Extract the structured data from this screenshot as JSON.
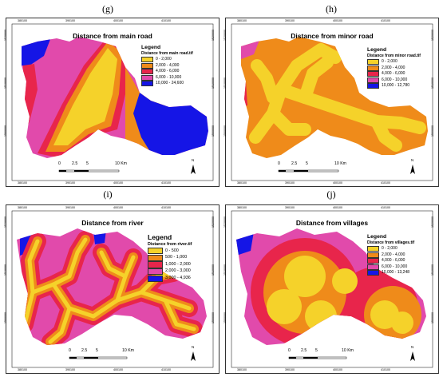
{
  "panels": [
    {
      "label": "(g)",
      "title": "Distance from main road",
      "legend": {
        "heading": "Legend",
        "file": "Distance from main road.tif",
        "classes": [
          {
            "label": "0 - 2,000",
            "color": "#f5d22a"
          },
          {
            "label": "2,000 - 4,000",
            "color": "#ef8b1a"
          },
          {
            "label": "4,000 - 6,000",
            "color": "#e8254b"
          },
          {
            "label": "6,000 - 10,000",
            "color": "#e14aab"
          },
          {
            "label": "10,000 - 24,600",
            "color": "#1515e6"
          }
        ]
      },
      "scalebar": {
        "ticks": [
          "0",
          "2.5",
          "5",
          "10 Km"
        ]
      },
      "north": "N",
      "coords_x": [
        "380100",
        "390100",
        "400100",
        "410100"
      ],
      "coords_y": [
        "1520000",
        "1510000",
        "1500000"
      ]
    },
    {
      "label": "(h)",
      "title": "Distance from minor road",
      "legend": {
        "heading": "Legend",
        "file": "Distance from minor road.tif",
        "classes": [
          {
            "label": "0 - 2,000",
            "color": "#f5d22a"
          },
          {
            "label": "2,000 - 4,000",
            "color": "#ef8b1a"
          },
          {
            "label": "4,000 - 6,000",
            "color": "#e8254b"
          },
          {
            "label": "6,000 - 10,000",
            "color": "#e14aab"
          },
          {
            "label": "10,000 - 12,780",
            "color": "#1515e6"
          }
        ]
      },
      "scalebar": {
        "ticks": [
          "0",
          "2.5",
          "5",
          "10 Km"
        ]
      },
      "north": "N",
      "coords_x": [
        "380100",
        "390100",
        "400100",
        "410100"
      ],
      "coords_y": [
        "1520000",
        "1510000",
        "1500000"
      ]
    },
    {
      "label": "(i)",
      "title": "Distance from river",
      "legend": {
        "heading": "Legend",
        "file": "Distance from river.tif",
        "classes": [
          {
            "label": "0 - 500",
            "color": "#f5d22a"
          },
          {
            "label": "500 - 1,000",
            "color": "#ef8b1a"
          },
          {
            "label": "1,000 - 2,000",
            "color": "#e8254b"
          },
          {
            "label": "2,000 - 3,000",
            "color": "#e14aab"
          },
          {
            "label": "3,000 - 4,936",
            "color": "#1515e6"
          }
        ]
      },
      "scalebar": {
        "ticks": [
          "0",
          "2.5",
          "5",
          "10 Km"
        ]
      },
      "north": "N",
      "coords_x": [
        "380100",
        "390100",
        "400100",
        "410100"
      ],
      "coords_y": [
        "1520000",
        "1510000",
        "1500000"
      ]
    },
    {
      "label": "(j)",
      "title": "Distance from villages",
      "legend": {
        "heading": "Legend",
        "file": "Distance from villages.tif",
        "classes": [
          {
            "label": "0 - 2,000",
            "color": "#f5d22a"
          },
          {
            "label": "2,000 - 4,000",
            "color": "#ef8b1a"
          },
          {
            "label": "4,000 - 6,000",
            "color": "#e8254b"
          },
          {
            "label": "6,000 - 10,000",
            "color": "#e14aab"
          },
          {
            "label": "10,000 - 13,248",
            "color": "#1515e6"
          }
        ]
      },
      "scalebar": {
        "ticks": [
          "0",
          "2.5",
          "5",
          "10 Km"
        ]
      },
      "north": "N",
      "coords_x": [
        "380100",
        "390100",
        "400100",
        "410100"
      ],
      "coords_y": [
        "1520000",
        "1510000",
        "1500000"
      ]
    }
  ]
}
